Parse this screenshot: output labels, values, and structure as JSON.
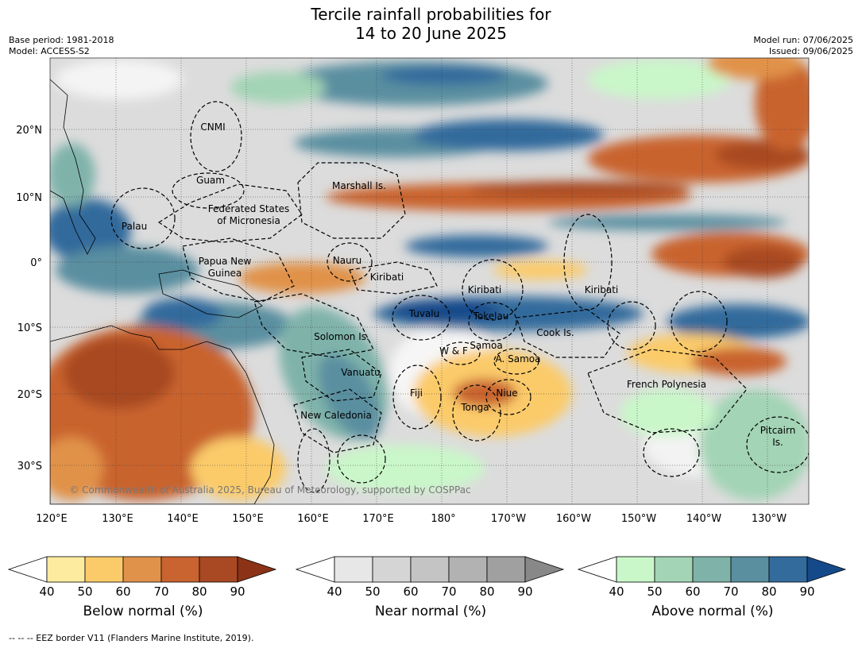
{
  "title_line1": "Tercile rainfall probabilities for",
  "title_line2": "14 to 20 June 2025",
  "base_period": "Base period: 1981-2018",
  "model": "Model: ACCESS-S2",
  "model_run": "Model run: 07/06/2025",
  "issued": "Issued: 09/06/2025",
  "copyright": "© Commonwealth of Australia 2025, Bureau of Meteorology, supported by COSPPac",
  "footer": "--  --  -- EEZ border V11 (Flanders Marine Institute, 2019).",
  "lon_ticks": [
    "120°E",
    "130°E",
    "140°E",
    "150°E",
    "160°E",
    "170°E",
    "180°",
    "170°W",
    "160°W",
    "150°W",
    "140°W",
    "130°W"
  ],
  "lat_ticks": [
    "20°N",
    "10°N",
    "0°",
    "10°S",
    "20°S",
    "30°S"
  ],
  "regions": [
    {
      "name": "CNMI"
    },
    {
      "name": "Guam"
    },
    {
      "name": "Palau"
    },
    {
      "name": "Federated States"
    },
    {
      "name": "of Micronesia"
    },
    {
      "name": "Marshall Is."
    },
    {
      "name": "Papua New"
    },
    {
      "name": "Guinea"
    },
    {
      "name": "Nauru"
    },
    {
      "name": "Kiribati"
    },
    {
      "name": "Kiribati"
    },
    {
      "name": "Kiribati"
    },
    {
      "name": "Tuvalu"
    },
    {
      "name": "Tokelau"
    },
    {
      "name": "Cook Is."
    },
    {
      "name": "Solomon Is."
    },
    {
      "name": "W & F"
    },
    {
      "name": "Samoa"
    },
    {
      "name": "A. Samoa"
    },
    {
      "name": "Vanuatu"
    },
    {
      "name": "Fiji"
    },
    {
      "name": "Niue"
    },
    {
      "name": "Tonga"
    },
    {
      "name": "French Polynesia"
    },
    {
      "name": "New Caledonia"
    },
    {
      "name": "Pitcairn"
    },
    {
      "name": "Is."
    }
  ],
  "colorbars": [
    {
      "label": "Below normal (%)",
      "ticks": [
        "40",
        "50",
        "60",
        "70",
        "80",
        "90"
      ],
      "colors": [
        "#ffffff",
        "#fdeca0",
        "#fbcb6a",
        "#e1924a",
        "#c9632f",
        "#a84923",
        "#8c3217"
      ]
    },
    {
      "label": "Near normal (%)",
      "ticks": [
        "40",
        "50",
        "60",
        "70",
        "80",
        "90"
      ],
      "colors": [
        "#ffffff",
        "#e7e7e7",
        "#d5d5d5",
        "#c4c4c4",
        "#b2b2b2",
        "#a0a0a0",
        "#888888"
      ]
    },
    {
      "label": "Above normal (%)",
      "ticks": [
        "40",
        "50",
        "60",
        "70",
        "80",
        "90"
      ],
      "colors": [
        "#ffffff",
        "#c9f7c9",
        "#a3d4b5",
        "#7fb3aa",
        "#5a8fa0",
        "#336b9c",
        "#154a8a"
      ]
    }
  ]
}
